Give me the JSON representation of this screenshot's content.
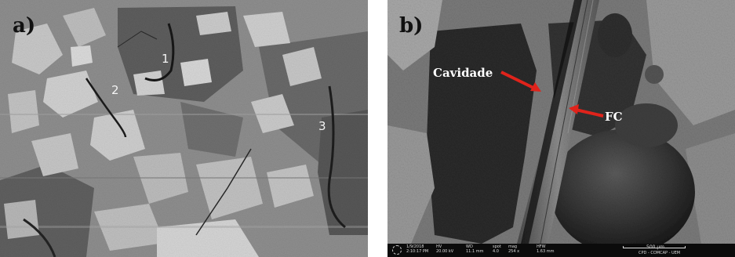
{
  "panel_a": {
    "label": "a)",
    "markers": [
      "1",
      "2",
      "3"
    ]
  },
  "panel_b": {
    "label": "b)",
    "annotations": {
      "cavity": "Cavidade",
      "fiber": "FC"
    },
    "arrow_color": "#e0231b",
    "sem_bar": {
      "date": "1/9/2018",
      "time": "2:10:17 PM",
      "hv": "20.00 kV",
      "wd": "11.1 mm",
      "spot": "4.0",
      "mag": "254 x",
      "hfw": "1.63 mm",
      "scale": "500 µm",
      "lab": "CPD - COMCAP - UEM",
      "hdr_hv": "HV",
      "hdr_wd": "WD",
      "hdr_spot": "spot",
      "hdr_mag": "mag",
      "hdr_hfw": "HFW"
    }
  }
}
